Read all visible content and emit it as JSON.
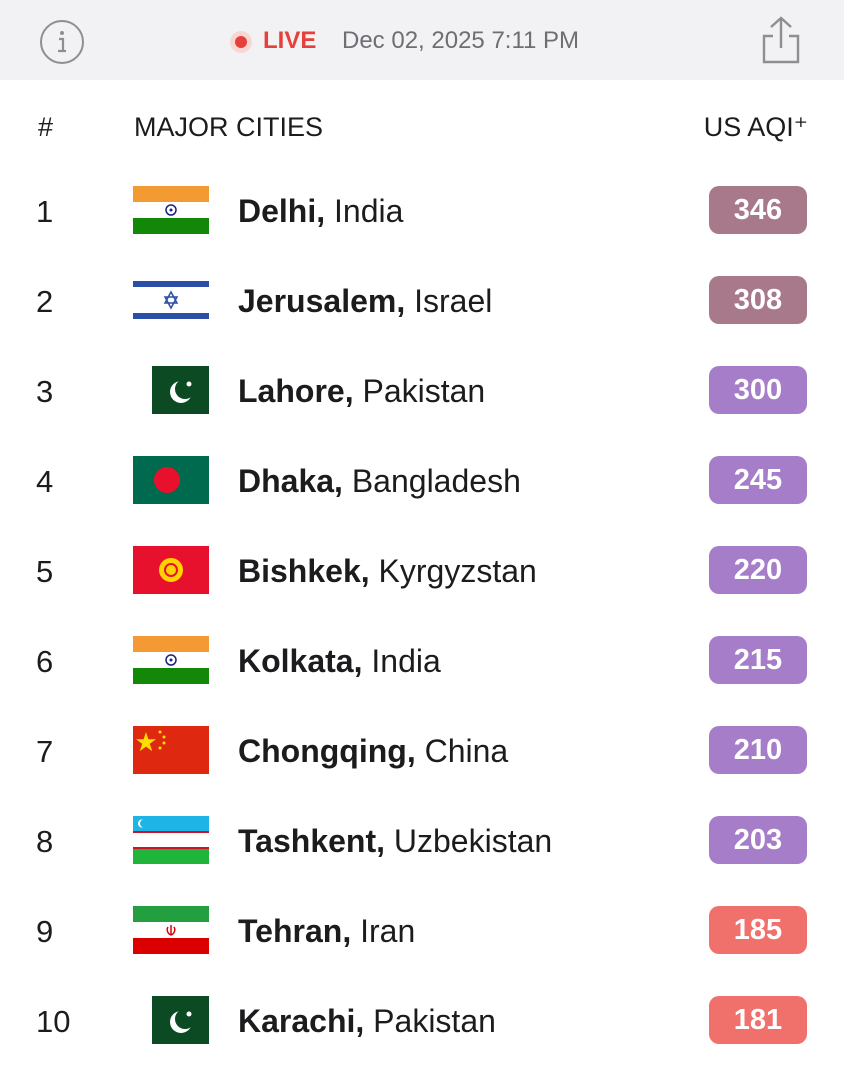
{
  "header": {
    "live": "LIVE",
    "datetime": "Dec 02, 2025 7:11 PM"
  },
  "table": {
    "columns": [
      "#",
      "MAJOR CITIES",
      "US AQI⁺"
    ],
    "rows": [
      {
        "rank": 1,
        "city": "Delhi,",
        "country": "India",
        "aqi": 346
      },
      {
        "rank": 2,
        "city": "Jerusalem,",
        "country": "Israel",
        "aqi": 308
      },
      {
        "rank": 3,
        "city": "Lahore,",
        "country": "Pakistan",
        "aqi": 300
      },
      {
        "rank": 4,
        "city": "Dhaka,",
        "country": "Bangladesh",
        "aqi": 245
      },
      {
        "rank": 5,
        "city": "Bishkek,",
        "country": "Kyrgyzstan",
        "aqi": 220
      },
      {
        "rank": 6,
        "city": "Kolkata,",
        "country": "India",
        "aqi": 215
      },
      {
        "rank": 7,
        "city": "Chongqing,",
        "country": "China",
        "aqi": 210
      },
      {
        "rank": 8,
        "city": "Tashkent,",
        "country": "Uzbekistan",
        "aqi": 203
      },
      {
        "rank": 9,
        "city": "Tehran,",
        "country": "Iran",
        "aqi": 185
      },
      {
        "rank": 10,
        "city": "Karachi,",
        "country": "Pakistan",
        "aqi": 181
      }
    ]
  }
}
